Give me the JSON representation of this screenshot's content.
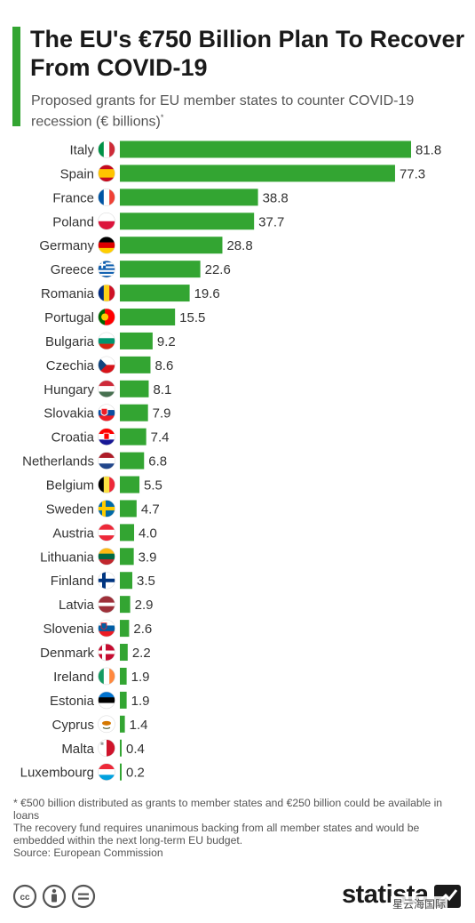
{
  "title": "The EU's €750 Billion Plan To Recover From COVID-19",
  "subtitle": "Proposed grants for EU member states to counter COVID-19 recession (€ billions)",
  "subtitle_marker": "*",
  "footnotes": {
    "asterisk": "* €500 billion distributed as grants to member states and €250 billion could be available in loans",
    "note": "The recovery fund requires unanimous backing from all member states and would be embedded within the next long-term EU budget.",
    "source": "Source: European Commission"
  },
  "logo": "statista",
  "watermark": "星云海国际",
  "colors": {
    "accent": "#33a532",
    "bar": "#33a532"
  },
  "icons": [
    "cc-icon",
    "by-icon",
    "nd-icon",
    "statista-logo-icon"
  ],
  "chart_data": {
    "type": "bar",
    "orientation": "horizontal",
    "categories": [
      "Italy",
      "Spain",
      "France",
      "Poland",
      "Germany",
      "Greece",
      "Romania",
      "Portugal",
      "Bulgaria",
      "Czechia",
      "Hungary",
      "Slovakia",
      "Croatia",
      "Netherlands",
      "Belgium",
      "Sweden",
      "Austria",
      "Lithuania",
      "Finland",
      "Latvia",
      "Slovenia",
      "Denmark",
      "Ireland",
      "Estonia",
      "Cyprus",
      "Malta",
      "Luxembourg"
    ],
    "values": [
      81.8,
      77.3,
      38.8,
      37.7,
      28.8,
      22.6,
      19.6,
      15.5,
      9.2,
      8.6,
      8.1,
      7.9,
      7.4,
      6.8,
      5.5,
      4.7,
      4.0,
      3.9,
      3.5,
      2.9,
      2.6,
      2.2,
      1.9,
      1.9,
      1.4,
      0.4,
      0.2
    ],
    "value_labels": [
      "81.8",
      "77.3",
      "38.8",
      "37.7",
      "28.8",
      "22.6",
      "19.6",
      "15.5",
      "9.2",
      "8.6",
      "8.1",
      "7.9",
      "7.4",
      "6.8",
      "5.5",
      "4.7",
      "4.0",
      "3.9",
      "3.5",
      "2.9",
      "2.6",
      "2.2",
      "1.9",
      "1.9",
      "1.4",
      "0.4",
      "0.2"
    ],
    "flags": [
      "italy",
      "spain",
      "france",
      "poland",
      "germany",
      "greece",
      "romania",
      "portugal",
      "bulgaria",
      "czechia",
      "hungary",
      "slovakia",
      "croatia",
      "netherlands",
      "belgium",
      "sweden",
      "austria",
      "lithuania",
      "finland",
      "latvia",
      "slovenia",
      "denmark",
      "ireland",
      "estonia",
      "cyprus",
      "malta",
      "luxembourg"
    ],
    "title": "",
    "xlabel": "",
    "ylabel": "",
    "xlim": [
      0,
      81.8
    ],
    "grid": false,
    "legend": "none"
  }
}
